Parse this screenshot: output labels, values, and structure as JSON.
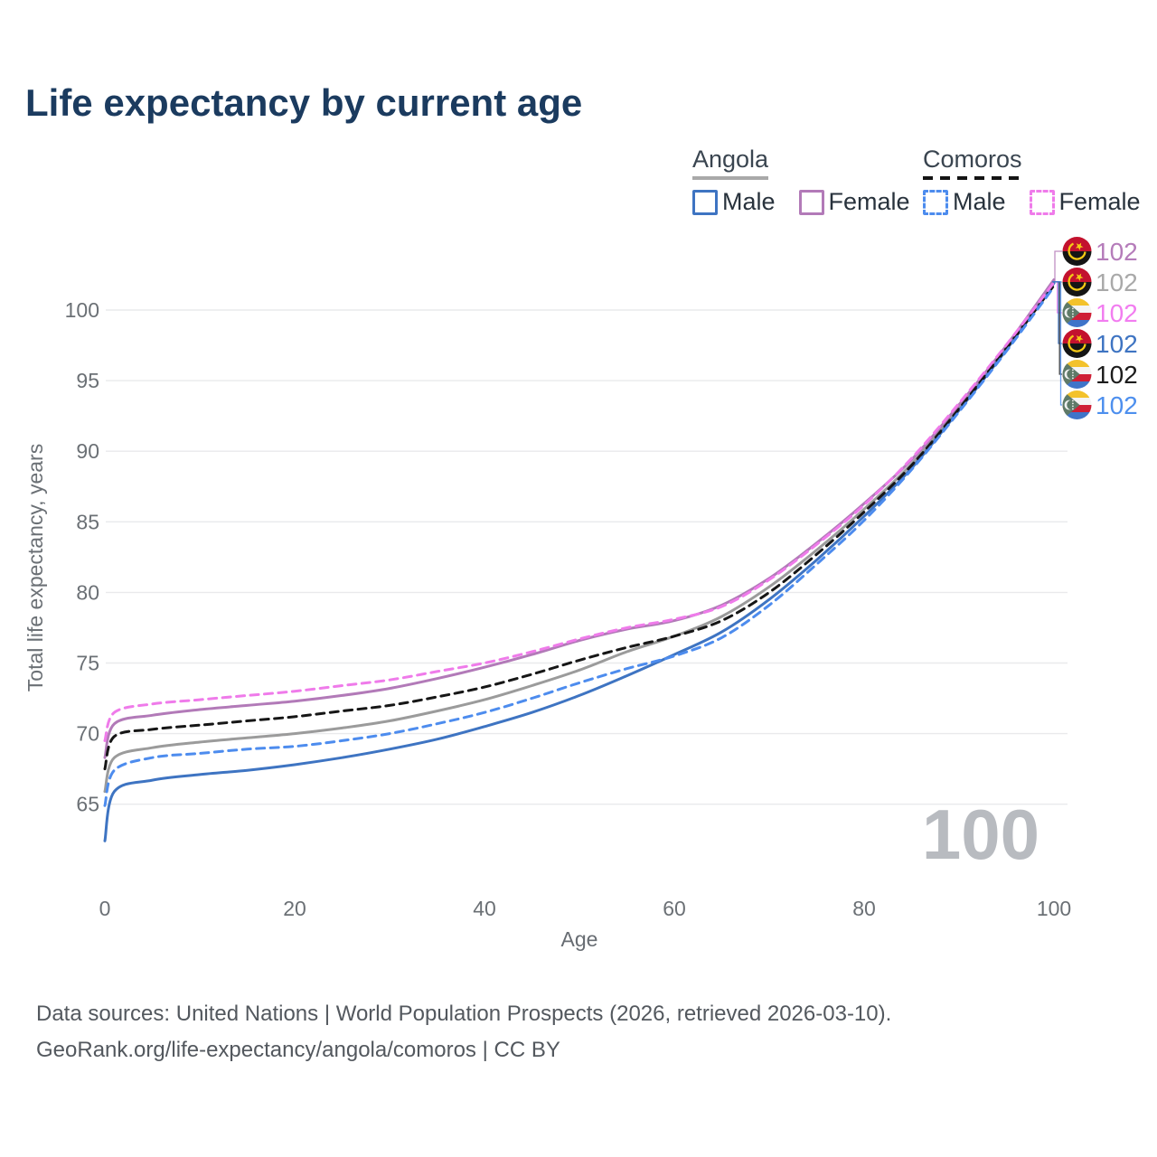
{
  "title": "Life expectancy by current age",
  "watermark": "100",
  "legend": {
    "groups": [
      {
        "country": "Angola",
        "style": "solid",
        "color": "#a9a9a9",
        "items": [
          {
            "label": "Male",
            "color": "#3e74c2"
          },
          {
            "label": "Female",
            "color": "#b27ab8"
          }
        ]
      },
      {
        "country": "Comoros",
        "style": "dashed",
        "color": "#141414",
        "items": [
          {
            "label": "Male",
            "color": "#4d8cee"
          },
          {
            "label": "Female",
            "color": "#ef7bea"
          }
        ]
      }
    ]
  },
  "axes": {
    "x": {
      "label": "Age",
      "ticks": [
        0,
        20,
        40,
        60,
        80,
        100
      ],
      "range": [
        0,
        100
      ]
    },
    "y": {
      "label": "Total life expectancy, years",
      "ticks": [
        65,
        70,
        75,
        80,
        85,
        90,
        95,
        100
      ],
      "range": [
        62,
        103
      ]
    }
  },
  "end_labels": [
    {
      "country": "Angola",
      "flag": "angola",
      "value": "102",
      "color": "#b57cba"
    },
    {
      "country": "Angola",
      "flag": "angola",
      "value": "102",
      "color": "#a9a9a9"
    },
    {
      "country": "Comoros",
      "flag": "comoros",
      "value": "102",
      "color": "#f27df0"
    },
    {
      "country": "Angola",
      "flag": "angola",
      "value": "102",
      "color": "#3e74c2"
    },
    {
      "country": "Comoros",
      "flag": "comoros",
      "value": "102",
      "color": "#1c1c1c"
    },
    {
      "country": "Comoros",
      "flag": "comoros",
      "value": "102",
      "color": "#4d8fee"
    }
  ],
  "footer": {
    "line1": "Data sources: United Nations | World Population Prospects (2026, retrieved 2026-03-10).",
    "line2": "GeoRank.org/life-expectancy/angola/comoros | CC BY"
  },
  "chart_data": {
    "type": "line",
    "title": "Life expectancy by current age",
    "xlabel": "Age",
    "ylabel": "Total life expectancy, years",
    "xlim": [
      0,
      100
    ],
    "ylim": [
      62,
      103
    ],
    "grid": "horizontal",
    "legend_position": "top-right",
    "x": [
      0,
      1,
      5,
      10,
      15,
      20,
      25,
      30,
      35,
      40,
      45,
      50,
      55,
      60,
      65,
      70,
      75,
      80,
      85,
      90,
      95,
      100
    ],
    "series": [
      {
        "name": "Angola Both sexes",
        "color": "#9b9b9b",
        "dash": false,
        "values": [
          65.9,
          68.3,
          69.0,
          69.4,
          69.7,
          70.0,
          70.4,
          70.9,
          71.6,
          72.4,
          73.4,
          74.5,
          75.8,
          76.9,
          78.3,
          80.4,
          83.0,
          85.9,
          89.1,
          93.1,
          97.35,
          102.05
        ]
      },
      {
        "name": "Angola Male",
        "color": "#3e74c2",
        "dash": false,
        "values": [
          62.4,
          65.9,
          66.7,
          67.1,
          67.4,
          67.8,
          68.3,
          68.9,
          69.6,
          70.5,
          71.5,
          72.7,
          74.1,
          75.6,
          77.2,
          79.5,
          82.3,
          85.4,
          88.8,
          92.9,
          97.2,
          101.9
        ]
      },
      {
        "name": "Angola Female",
        "color": "#b27ab8",
        "dash": false,
        "values": [
          68.3,
          70.7,
          71.3,
          71.7,
          72.0,
          72.3,
          72.7,
          73.2,
          73.9,
          74.7,
          75.6,
          76.6,
          77.4,
          78.0,
          79.1,
          81.0,
          83.5,
          86.3,
          89.4,
          93.3,
          97.5,
          102.15
        ]
      },
      {
        "name": "Comoros Both sexes",
        "color": "#161616",
        "dash": true,
        "values": [
          67.5,
          69.8,
          70.3,
          70.6,
          70.9,
          71.2,
          71.6,
          72.0,
          72.6,
          73.3,
          74.2,
          75.2,
          76.1,
          76.9,
          78.0,
          80.0,
          82.7,
          85.7,
          89.0,
          93.0,
          97.3,
          101.75
        ]
      },
      {
        "name": "Comoros Male",
        "color": "#4d8cee",
        "dash": true,
        "values": [
          64.9,
          67.4,
          68.3,
          68.6,
          68.9,
          69.1,
          69.5,
          70.0,
          70.7,
          71.5,
          72.5,
          73.6,
          74.6,
          75.5,
          76.8,
          79.1,
          82.0,
          85.1,
          88.7,
          92.8,
          97.1,
          101.65
        ]
      },
      {
        "name": "Comoros Female",
        "color": "#ef7bea",
        "dash": true,
        "values": [
          69.5,
          71.5,
          72.1,
          72.4,
          72.7,
          73.0,
          73.4,
          73.8,
          74.4,
          75.0,
          75.8,
          76.7,
          77.5,
          78.1,
          79.0,
          80.9,
          83.4,
          86.2,
          89.5,
          93.4,
          97.55,
          101.95
        ]
      }
    ]
  }
}
